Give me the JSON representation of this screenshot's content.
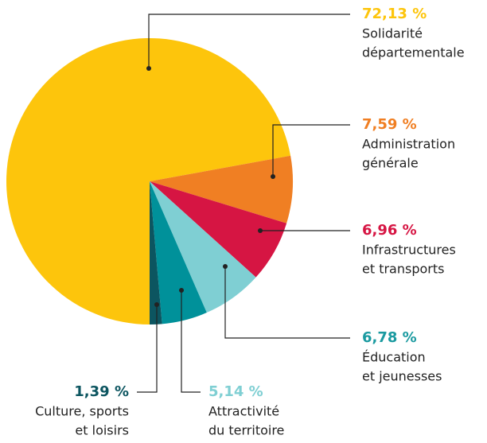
{
  "chart_data": {
    "type": "pie",
    "categories": [
      [
        "Solidarité",
        "départementale"
      ],
      [
        "Administration",
        "générale"
      ],
      [
        "Infrastructures",
        "et transports"
      ],
      [
        "Éducation",
        "et jeunesses"
      ],
      [
        "Attractivité",
        "du territoire"
      ],
      [
        "Culture, sports",
        "et loisirs"
      ]
    ],
    "values": [
      72.13,
      7.59,
      6.96,
      6.78,
      5.14,
      1.39
    ],
    "value_labels": [
      "72,13 %",
      "7,59 %",
      "6,96 %",
      "6,78 %",
      "5,14 %",
      "1,39 %"
    ],
    "colors": [
      "#fdc50c",
      "#f07f23",
      "#d61543",
      "#7fcfd3",
      "#00919a",
      "#0c5560"
    ],
    "label_colors": [
      "#fdc50c",
      "#f07f23",
      "#d61543",
      "#1a9aa0",
      "#7fcfd3",
      "#0c5560"
    ]
  }
}
